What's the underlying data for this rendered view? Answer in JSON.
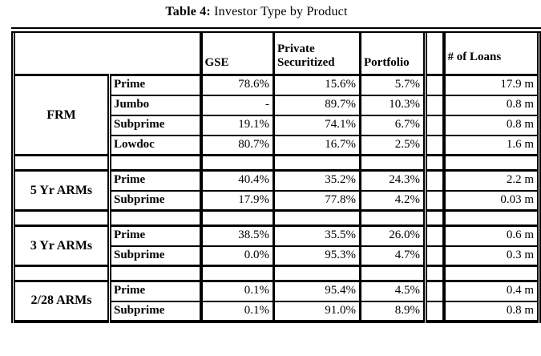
{
  "title": {
    "prefix": "Table 4:",
    "text": " Investor Type by Product"
  },
  "colors": {
    "text": "#000000",
    "background": "#ffffff",
    "border": "#000000"
  },
  "header": {
    "col_gse": "GSE",
    "col_private_securitized": "Private Securitized",
    "col_portfolio": "Portfolio",
    "col_loans": "# of Loans"
  },
  "sections": [
    {
      "group": "FRM",
      "rows": [
        {
          "label": "Prime",
          "gse": "78.6%",
          "private": "15.6%",
          "portfolio": "5.7%",
          "loans": "17.9 m"
        },
        {
          "label": "Jumbo",
          "gse": "-",
          "private": "89.7%",
          "portfolio": "10.3%",
          "loans": "0.8 m"
        },
        {
          "label": "Subprime",
          "gse": "19.1%",
          "private": "74.1%",
          "portfolio": "6.7%",
          "loans": "0.8 m"
        },
        {
          "label": "Lowdoc",
          "gse": "80.7%",
          "private": "16.7%",
          "portfolio": "2.5%",
          "loans": "1.6 m"
        }
      ]
    },
    {
      "group": "5 Yr ARMs",
      "rows": [
        {
          "label": "Prime",
          "gse": "40.4%",
          "private": "35.2%",
          "portfolio": "24.3%",
          "loans": "2.2 m"
        },
        {
          "label": "Subprime",
          "gse": "17.9%",
          "private": "77.8%",
          "portfolio": "4.2%",
          "loans": "0.03 m"
        }
      ]
    },
    {
      "group": "3 Yr ARMs",
      "rows": [
        {
          "label": "Prime",
          "gse": "38.5%",
          "private": "35.5%",
          "portfolio": "26.0%",
          "loans": "0.6 m"
        },
        {
          "label": "Subprime",
          "gse": "0.0%",
          "private": "95.3%",
          "portfolio": "4.7%",
          "loans": "0.3 m"
        }
      ]
    },
    {
      "group": "2/28 ARMs",
      "rows": [
        {
          "label": "Prime",
          "gse": "0.1%",
          "private": "95.4%",
          "portfolio": "4.5%",
          "loans": "0.4 m"
        },
        {
          "label": "Subprime",
          "gse": "0.1%",
          "private": "91.0%",
          "portfolio": "8.9%",
          "loans": "0.8 m"
        }
      ]
    }
  ]
}
